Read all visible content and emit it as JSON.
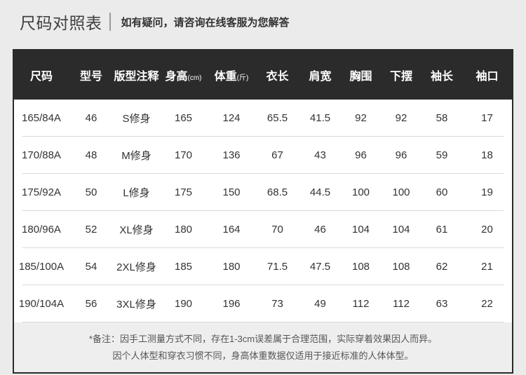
{
  "page": {
    "title": "尺码对照表",
    "subtitle": "如有疑问，请咨询在线客服为您解答"
  },
  "table": {
    "columns": [
      {
        "label": "尺码",
        "unit": ""
      },
      {
        "label": "型号",
        "unit": ""
      },
      {
        "label": "版型注释",
        "unit": ""
      },
      {
        "label": "身高",
        "unit": "(cm)"
      },
      {
        "label": "体重",
        "unit": "(斤)"
      },
      {
        "label": "衣长",
        "unit": ""
      },
      {
        "label": "肩宽",
        "unit": ""
      },
      {
        "label": "胸围",
        "unit": ""
      },
      {
        "label": "下摆",
        "unit": ""
      },
      {
        "label": "袖长",
        "unit": ""
      },
      {
        "label": "袖口",
        "unit": ""
      }
    ],
    "rows": [
      [
        "165/84A",
        "46",
        "S修身",
        "165",
        "124",
        "65.5",
        "41.5",
        "92",
        "92",
        "58",
        "17"
      ],
      [
        "170/88A",
        "48",
        "M修身",
        "170",
        "136",
        "67",
        "43",
        "96",
        "96",
        "59",
        "18"
      ],
      [
        "175/92A",
        "50",
        "L修身",
        "175",
        "150",
        "68.5",
        "44.5",
        "100",
        "100",
        "60",
        "19"
      ],
      [
        "180/96A",
        "52",
        "XL修身",
        "180",
        "164",
        "70",
        "46",
        "104",
        "104",
        "61",
        "20"
      ],
      [
        "185/100A",
        "54",
        "2XL修身",
        "185",
        "180",
        "71.5",
        "47.5",
        "108",
        "108",
        "62",
        "21"
      ],
      [
        "190/104A",
        "56",
        "3XL修身",
        "190",
        "196",
        "73",
        "49",
        "112",
        "112",
        "63",
        "22"
      ]
    ]
  },
  "note": {
    "line1": "*备注：因手工测量方式不同，存在1-3cm误差属于合理范围，实际穿着效果因人而异。",
    "line2": "因个人体型和穿衣习惯不同，身高体重数据仅适用于接近标准的人体体型。"
  },
  "colors": {
    "page_bg": "#ebebeb",
    "title_text": "#3f3f3f",
    "vbar": "#9a9a9a",
    "header_bg": "#2b2b2b",
    "header_text": "#ffffff",
    "row_bg": "#ffffff",
    "divider": "#d9d9d9",
    "border": "#2a2a2a",
    "note_bg": "#eeeeee",
    "text": "#333333",
    "note_text": "#555555"
  }
}
